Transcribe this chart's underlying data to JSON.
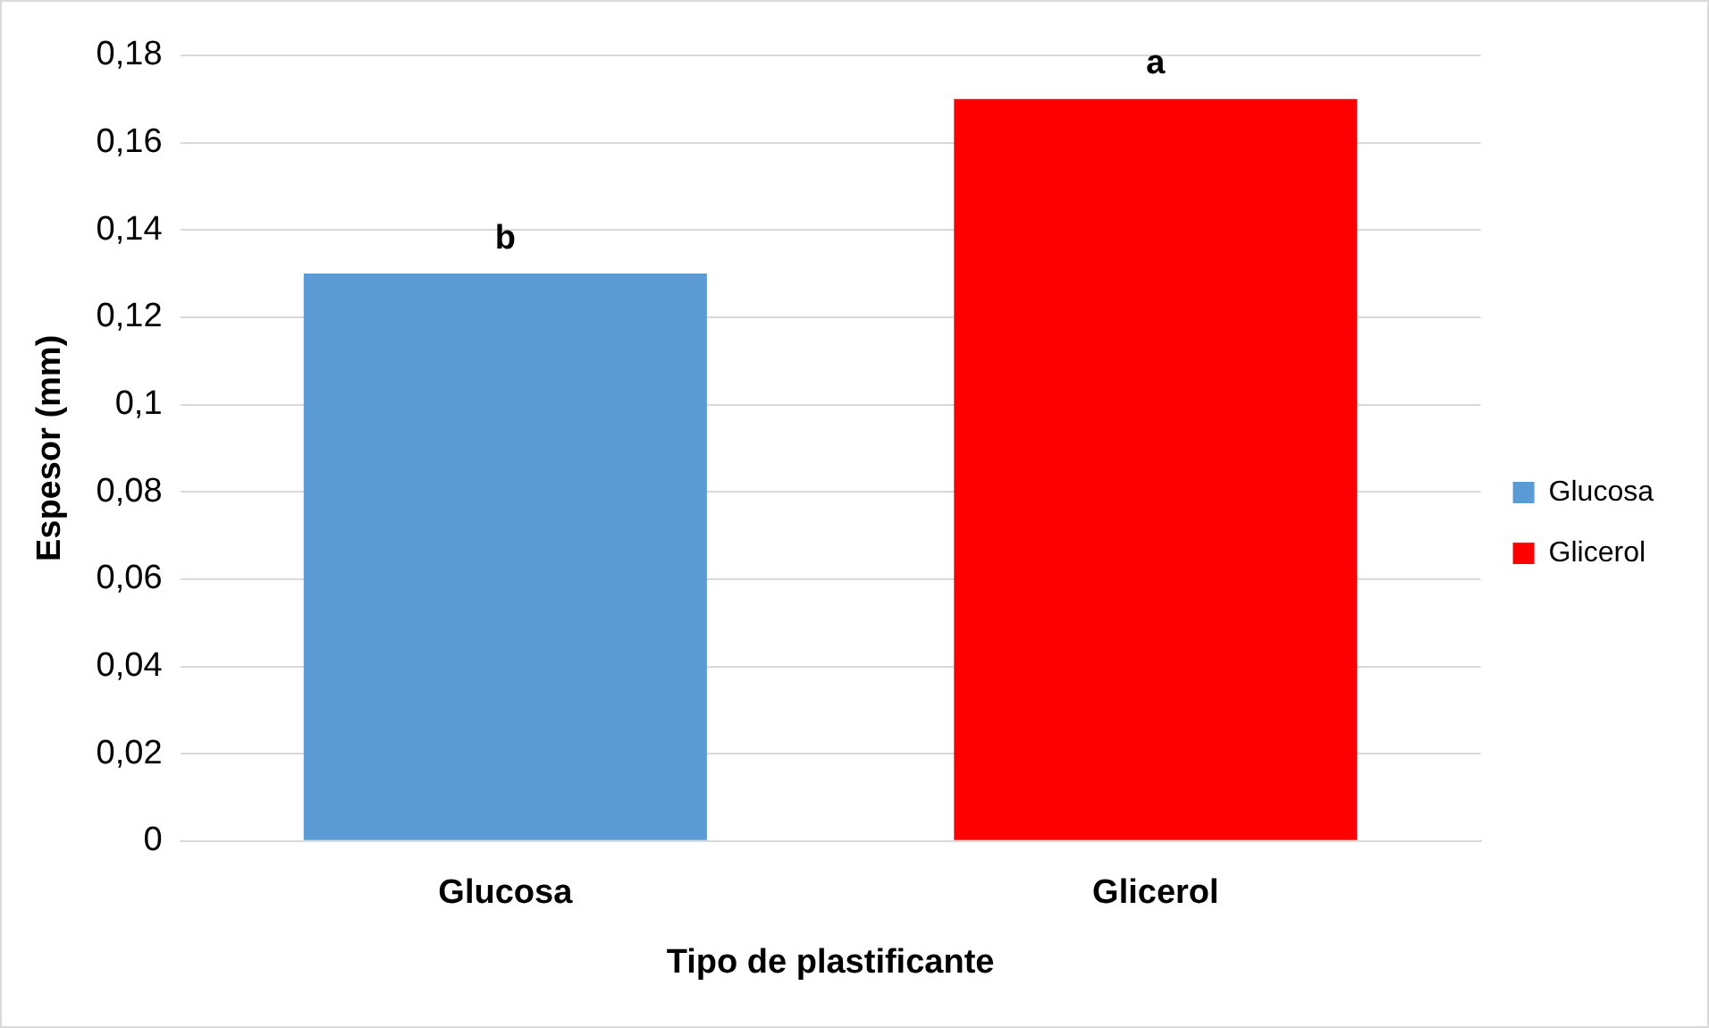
{
  "chart_data": {
    "type": "bar",
    "xlabel": "Tipo de plastificante",
    "ylabel": "Espesor (mm)",
    "categories": [
      "Glucosa",
      "Glicerol"
    ],
    "series": [
      {
        "name": "Glucosa",
        "color": "#5b9bd5",
        "values": [
          0.13,
          null
        ]
      },
      {
        "name": "Glicerol",
        "color": "#ff0000",
        "values": [
          null,
          0.17
        ]
      }
    ],
    "ylim": [
      0,
      0.18
    ],
    "yticks": [
      0,
      {
        "value": 0.02,
        "label": "0,02"
      },
      {
        "value": 0.04,
        "label": "0,04"
      },
      {
        "value": 0.06,
        "label": "0,06"
      },
      {
        "value": 0.08,
        "label": "0,08"
      },
      {
        "value": 0.1,
        "label": "0,1"
      },
      {
        "value": 0.12,
        "label": "0,12"
      },
      {
        "value": 0.14,
        "label": "0,14"
      },
      {
        "value": 0.16,
        "label": "0,16"
      },
      {
        "value": 0.18,
        "label": "0,18"
      }
    ],
    "grid": "y",
    "legend": "right",
    "annotations": [
      {
        "text": "b",
        "x": "Glucosa",
        "y": 0.13
      },
      {
        "text": "a",
        "x": "Glicerol",
        "y": 0.17
      }
    ]
  }
}
